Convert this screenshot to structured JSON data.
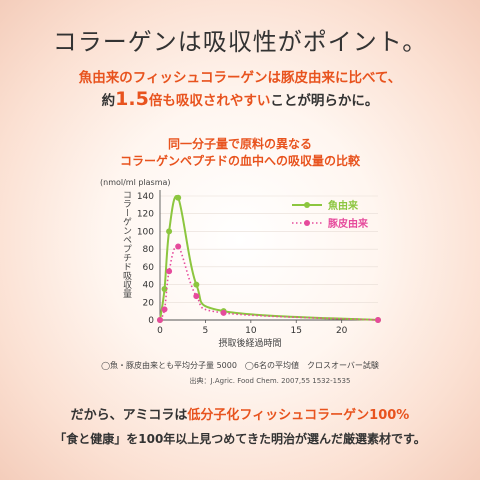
{
  "headline": "コラーゲンは吸収性がポイント。",
  "sub1": "魚由来のフィッシュコラーゲンは豚皮由来に比べて、",
  "sub2": {
    "pre": "約",
    "number": "1.5",
    "mid": "倍も吸収されやすい",
    "post": "ことが明らかに。"
  },
  "chart_title_line1": "同一分子量で原料の異なる",
  "chart_title_line2": "コラーゲンペプチドの血中への吸収量の比較",
  "note": "◯魚・豚皮由来とも平均分子量 5000　◯6名の平均値　クロスオーバー試験",
  "source": "出典：J.Agric. Food Chem. 2007,55 1532-1535",
  "bottom_line1": {
    "pre": "だから、アミコラは",
    "highlight": "低分子化フィッシュコラーゲン100%"
  },
  "bottom_line2": "「食と健康」を100年以上見つめてきた明治が選んだ厳選素材です。",
  "colors": {
    "accent": "#e8531e",
    "fish": "#8cc63f",
    "pig": "#e64a9c"
  },
  "chart_data": {
    "type": "line",
    "unit_label": "(nmol/ml plasma)",
    "ylabel": "コラーゲンペプチド吸収量",
    "xlabel": "摂取後経過時間",
    "xlim": [
      0,
      24
    ],
    "ylim": [
      0,
      140
    ],
    "x_ticks": [
      0,
      5,
      10,
      15,
      20
    ],
    "y_ticks": [
      0,
      20,
      40,
      60,
      80,
      100,
      120,
      140
    ],
    "grid": "horizontal",
    "legend_position": "top-right",
    "series": [
      {
        "name": "魚由来",
        "style": "solid",
        "points": [
          [
            0,
            0
          ],
          [
            0.5,
            35
          ],
          [
            1,
            100
          ],
          [
            2,
            138
          ],
          [
            4,
            40
          ],
          [
            7,
            10
          ],
          [
            24,
            0
          ]
        ]
      },
      {
        "name": "豚皮由来",
        "style": "dotted",
        "points": [
          [
            0,
            0
          ],
          [
            0.5,
            12
          ],
          [
            1,
            55
          ],
          [
            2,
            83
          ],
          [
            4,
            27
          ],
          [
            7,
            8
          ],
          [
            24,
            0
          ]
        ]
      }
    ]
  }
}
